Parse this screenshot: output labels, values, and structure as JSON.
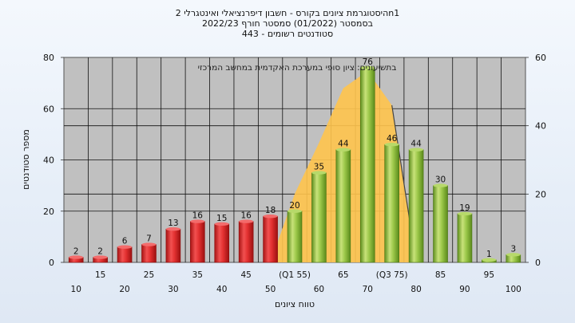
{
  "titles": {
    "line1": "היסטוגרמת ציונים בקורס - חשבון דיפרנציאלי ואינטגרלי 2n1",
    "line2": "בסמסטר  (01/2022)  סמסטר חורף  2022/23",
    "line3": "443 - סטודנטים רשומים"
  },
  "chart_data": {
    "type": "bar",
    "title": "היסטוגרמת ציונים בקורס - חשבון דיפרנציאלי ואינטגרלי 2n1",
    "xlabel": "טווח ציונים",
    "ylabel": "מספר סטודנטים",
    "annotation": "בתשיעונים: ציון סופי במערכת האקדמית במחשב המרכזי",
    "categories": [
      "10",
      "15",
      "20",
      "25",
      "30",
      "35",
      "40",
      "45",
      "50",
      "55",
      "60",
      "65",
      "70",
      "75",
      "80",
      "85",
      "90",
      "95",
      "100"
    ],
    "tick_labels": [
      "10",
      "15",
      "20",
      "25",
      "30",
      "35",
      "40",
      "45",
      "50",
      "(Q1 55)",
      "60",
      "65",
      "70",
      "(Q3 75)",
      "80",
      "85",
      "90",
      "95",
      "100"
    ],
    "values": [
      2,
      2,
      6,
      7,
      13,
      16,
      15,
      16,
      18,
      20,
      35,
      44,
      76,
      46,
      44,
      30,
      19,
      1,
      3
    ],
    "bar_colors": {
      "fail": "#d42a2a",
      "pass": "#8cbf3c",
      "fail_below": 55
    },
    "area_series": [
      {
        "x": 50,
        "y": 0
      },
      {
        "x": 55,
        "y": 20
      },
      {
        "x": 60,
        "y": 35
      },
      {
        "x": 65,
        "y": 51
      },
      {
        "x": 70,
        "y": 56
      },
      {
        "x": 75,
        "y": 46
      },
      {
        "x": 80,
        "y": 0
      }
    ],
    "area_color": "#ffc44d",
    "ylim_left": [
      0,
      80
    ],
    "yticks_left": [
      0,
      20,
      40,
      60,
      80
    ],
    "ylim_right": [
      0,
      60
    ],
    "yticks_right": [
      0,
      20,
      40,
      60
    ],
    "grid": true
  }
}
